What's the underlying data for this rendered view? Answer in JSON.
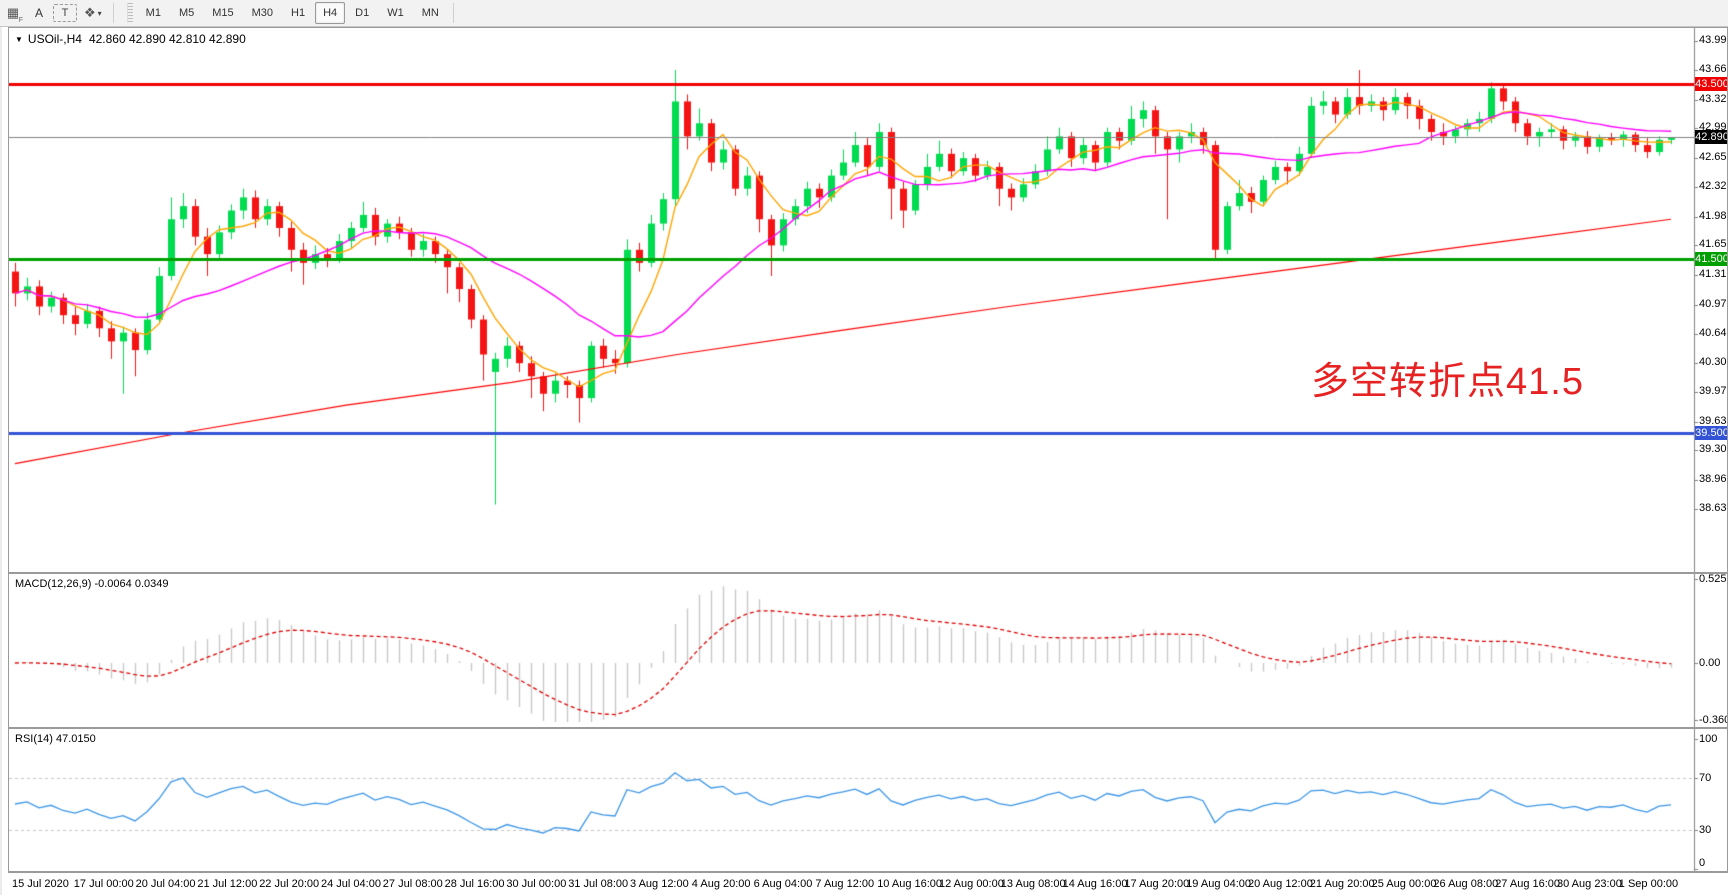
{
  "toolbar": {
    "icons": [
      {
        "name": "grid-icon",
        "glyph": "▦",
        "sub": "F"
      },
      {
        "name": "text-label-icon",
        "glyph": "A"
      },
      {
        "name": "text-tool-icon",
        "glyph": "T"
      },
      {
        "name": "arrow-tools-icon",
        "glyph": "❖"
      },
      {
        "name": "dropdown-caret-icon",
        "glyph": "▾"
      }
    ],
    "timeframes": [
      "M1",
      "M5",
      "M15",
      "M30",
      "H1",
      "H4",
      "D1",
      "W1",
      "MN"
    ],
    "active_timeframe": "H4"
  },
  "main": {
    "collapse_caret": "▼",
    "symbol_label": "USOil-,H4",
    "quote_line": "42.860 42.890 42.810 42.890",
    "annotation": {
      "text": "多空转折点41.5",
      "color": "#e62222"
    },
    "axis_ticks": [
      "43.990",
      "43.660",
      "43.320",
      "42.990",
      "42.650",
      "42.320",
      "41.980",
      "41.650",
      "41.310",
      "40.970",
      "40.640",
      "40.300",
      "39.970",
      "39.630",
      "39.300",
      "38.960",
      "38.630"
    ]
  },
  "macd": {
    "header": "MACD(12,26,9) -0.0064 0.0349",
    "axis_ticks": [
      "0.5257",
      "0.00",
      "-0.3603"
    ],
    "bar_color": "#c9c9c9",
    "signal_color": "#e00000"
  },
  "rsi": {
    "header": "RSI(14) 47.0150",
    "axis_ticks": [
      "100",
      "70",
      "30",
      "0"
    ],
    "level_lines": [
      70,
      30
    ],
    "line_color": "#3c96e6"
  },
  "time_axis": {
    "labels": [
      "15 Jul 2020",
      "17 Jul 00:00",
      "20 Jul 04:00",
      "21 Jul 12:00",
      "22 Jul 20:00",
      "24 Jul 04:00",
      "27 Jul 08:00",
      "28 Jul 16:00",
      "30 Jul 00:00",
      "31 Jul 08:00",
      "3 Aug 12:00",
      "4 Aug 20:00",
      "6 Aug 04:00",
      "7 Aug 12:00",
      "10 Aug 16:00",
      "12 Aug 00:00",
      "13 Aug 08:00",
      "14 Aug 16:00",
      "17 Aug 20:00",
      "19 Aug 04:00",
      "20 Aug 12:00",
      "21 Aug 20:00",
      "25 Aug 00:00",
      "26 Aug 08:00",
      "27 Aug 16:00",
      "30 Aug 23:00",
      "1 Sep 00:00"
    ]
  },
  "chart_data": {
    "type": "candlestick",
    "symbol": "USOil",
    "timeframe": "H4",
    "title": "USOil-,H4 42.860 42.890 42.810 42.890",
    "x_range": [
      "15 Jul 2020",
      "1 Sep 2020 00:00"
    ],
    "y_range": [
      38.63,
      43.99
    ],
    "up_color": "#00dc50",
    "down_color": "#f41414",
    "levels": [
      {
        "price": 43.5,
        "label": "43.500",
        "color": "#f00000",
        "badge_bg": "#f00000",
        "badge_fg": "#ffffff",
        "width": 3
      },
      {
        "price": 42.89,
        "label": "42.890",
        "color": "#808080",
        "badge_bg": "#000000",
        "badge_fg": "#ffffff",
        "width": 1
      },
      {
        "price": 41.5,
        "label": "41.500",
        "color": "#00a000",
        "badge_bg": "#00a000",
        "badge_fg": "#ffffff",
        "width": 3
      },
      {
        "price": 39.5,
        "label": "39.500",
        "color": "#3353d6",
        "badge_bg": "#3353d6",
        "badge_fg": "#ffffff",
        "width": 3
      }
    ],
    "moving_averages": [
      {
        "name": "fast-ma",
        "color": "#ffa500",
        "period": 5
      },
      {
        "name": "mid-ma",
        "color": "#ff00ff",
        "period": 18
      }
    ],
    "slow_ma": {
      "name": "slow-ma",
      "color": "#ff0000",
      "anchors": [
        [
          0,
          39.15
        ],
        [
          0.1,
          39.5
        ],
        [
          0.2,
          39.82
        ],
        [
          0.3,
          40.08
        ],
        [
          0.4,
          40.4
        ],
        [
          0.5,
          40.68
        ],
        [
          0.6,
          40.95
        ],
        [
          0.7,
          41.2
        ],
        [
          0.8,
          41.45
        ],
        [
          0.9,
          41.7
        ],
        [
          1,
          41.95
        ]
      ]
    },
    "indicators": {
      "macd": {
        "fast": 12,
        "slow": 26,
        "signal": 9,
        "value": -0.0064,
        "signal_value": 0.0349,
        "axis_max": 0.5257,
        "axis_min": -0.3603
      },
      "rsi": {
        "period": 14,
        "value": 47.015,
        "axis": [
          0,
          100
        ],
        "levels": [
          30,
          70
        ]
      }
    },
    "candles_ohlc": [
      [
        41.35,
        41.45,
        40.95,
        41.1
      ],
      [
        41.1,
        41.28,
        41.02,
        41.18
      ],
      [
        41.18,
        41.25,
        40.85,
        40.95
      ],
      [
        40.95,
        41.12,
        40.88,
        41.05
      ],
      [
        41.05,
        41.1,
        40.75,
        40.85
      ],
      [
        40.85,
        40.95,
        40.62,
        40.75
      ],
      [
        40.75,
        40.98,
        40.7,
        40.9
      ],
      [
        40.9,
        40.95,
        40.6,
        40.7
      ],
      [
        40.7,
        40.78,
        40.35,
        40.55
      ],
      [
        40.55,
        40.72,
        39.95,
        40.65
      ],
      [
        40.65,
        40.7,
        40.15,
        40.45
      ],
      [
        40.45,
        40.88,
        40.4,
        40.8
      ],
      [
        40.8,
        41.4,
        40.75,
        41.3
      ],
      [
        41.3,
        42.2,
        41.25,
        41.95
      ],
      [
        41.95,
        42.25,
        41.85,
        42.1
      ],
      [
        42.1,
        42.18,
        41.65,
        41.75
      ],
      [
        41.75,
        41.85,
        41.3,
        41.55
      ],
      [
        41.55,
        41.88,
        41.48,
        41.8
      ],
      [
        41.8,
        42.12,
        41.72,
        42.05
      ],
      [
        42.05,
        42.3,
        41.95,
        42.2
      ],
      [
        42.2,
        42.28,
        41.85,
        41.95
      ],
      [
        41.95,
        42.18,
        41.88,
        42.1
      ],
      [
        42.1,
        42.15,
        41.75,
        41.85
      ],
      [
        41.85,
        41.92,
        41.35,
        41.6
      ],
      [
        41.6,
        41.68,
        41.2,
        41.45
      ],
      [
        41.45,
        41.65,
        41.38,
        41.55
      ],
      [
        41.55,
        41.62,
        41.4,
        41.5
      ],
      [
        41.5,
        41.78,
        41.45,
        41.7
      ],
      [
        41.7,
        41.92,
        41.62,
        41.85
      ],
      [
        41.85,
        42.15,
        41.8,
        42.0
      ],
      [
        42.0,
        42.08,
        41.65,
        41.75
      ],
      [
        41.75,
        41.95,
        41.68,
        41.9
      ],
      [
        41.9,
        41.98,
        41.72,
        41.8
      ],
      [
        41.8,
        41.85,
        41.52,
        41.6
      ],
      [
        41.6,
        41.78,
        41.52,
        41.7
      ],
      [
        41.7,
        41.75,
        41.45,
        41.55
      ],
      [
        41.55,
        41.6,
        41.1,
        41.4
      ],
      [
        41.4,
        41.45,
        41.0,
        41.15
      ],
      [
        41.15,
        41.2,
        40.7,
        40.8
      ],
      [
        40.8,
        40.85,
        40.1,
        40.4
      ],
      [
        40.2,
        40.42,
        38.68,
        40.35
      ],
      [
        40.35,
        40.6,
        40.25,
        40.5
      ],
      [
        40.5,
        40.55,
        40.2,
        40.3
      ],
      [
        40.3,
        40.38,
        39.9,
        40.15
      ],
      [
        40.15,
        40.2,
        39.75,
        39.95
      ],
      [
        39.95,
        40.18,
        39.85,
        40.1
      ],
      [
        40.1,
        40.15,
        39.9,
        40.05
      ],
      [
        40.05,
        40.1,
        39.62,
        39.9
      ],
      [
        39.9,
        40.55,
        39.85,
        40.5
      ],
      [
        40.5,
        40.58,
        40.25,
        40.35
      ],
      [
        40.35,
        40.45,
        40.18,
        40.3
      ],
      [
        40.3,
        41.72,
        40.25,
        41.6
      ],
      [
        41.6,
        41.68,
        41.35,
        41.45
      ],
      [
        41.45,
        42.0,
        41.4,
        41.9
      ],
      [
        41.9,
        42.25,
        41.82,
        42.18
      ],
      [
        42.18,
        43.66,
        42.1,
        43.3
      ],
      [
        43.3,
        43.38,
        42.75,
        42.9
      ],
      [
        42.9,
        43.22,
        42.85,
        43.05
      ],
      [
        43.05,
        43.1,
        42.5,
        42.6
      ],
      [
        42.6,
        42.85,
        42.52,
        42.75
      ],
      [
        42.75,
        42.8,
        42.22,
        42.3
      ],
      [
        42.3,
        42.55,
        42.22,
        42.45
      ],
      [
        42.45,
        42.5,
        41.8,
        41.95
      ],
      [
        41.95,
        42.0,
        41.3,
        41.65
      ],
      [
        41.65,
        42.02,
        41.58,
        41.95
      ],
      [
        41.95,
        42.18,
        41.88,
        42.1
      ],
      [
        42.1,
        42.38,
        42.02,
        42.3
      ],
      [
        42.3,
        42.36,
        42.08,
        42.2
      ],
      [
        42.2,
        42.52,
        42.15,
        42.45
      ],
      [
        42.45,
        42.75,
        42.4,
        42.6
      ],
      [
        42.6,
        42.95,
        42.55,
        42.8
      ],
      [
        42.8,
        42.88,
        42.45,
        42.55
      ],
      [
        42.55,
        43.05,
        42.5,
        42.95
      ],
      [
        42.95,
        43.0,
        41.95,
        42.3
      ],
      [
        42.3,
        42.38,
        41.85,
        42.05
      ],
      [
        42.05,
        42.4,
        42.0,
        42.35
      ],
      [
        42.35,
        42.7,
        42.28,
        42.55
      ],
      [
        42.55,
        42.85,
        42.5,
        42.7
      ],
      [
        42.7,
        42.76,
        42.42,
        42.5
      ],
      [
        42.5,
        42.72,
        42.45,
        42.65
      ],
      [
        42.65,
        42.7,
        42.38,
        42.45
      ],
      [
        42.45,
        42.62,
        42.4,
        42.55
      ],
      [
        42.55,
        42.6,
        42.1,
        42.3
      ],
      [
        42.3,
        42.36,
        42.05,
        42.2
      ],
      [
        42.2,
        42.42,
        42.15,
        42.35
      ],
      [
        42.35,
        42.58,
        42.3,
        42.5
      ],
      [
        42.5,
        42.9,
        42.45,
        42.75
      ],
      [
        42.75,
        43.0,
        42.7,
        42.9
      ],
      [
        42.9,
        42.95,
        42.55,
        42.65
      ],
      [
        42.65,
        42.88,
        42.58,
        42.8
      ],
      [
        42.8,
        42.85,
        42.5,
        42.6
      ],
      [
        42.6,
        43.0,
        42.55,
        42.95
      ],
      [
        42.95,
        43.0,
        42.75,
        42.85
      ],
      [
        42.85,
        43.25,
        42.8,
        43.1
      ],
      [
        43.1,
        43.3,
        43.0,
        43.2
      ],
      [
        43.2,
        43.25,
        42.7,
        42.9
      ],
      [
        42.9,
        42.95,
        41.95,
        42.75
      ],
      [
        42.75,
        42.95,
        42.6,
        42.9
      ],
      [
        42.9,
        43.05,
        42.82,
        42.95
      ],
      [
        42.95,
        43.0,
        42.7,
        42.8
      ],
      [
        42.8,
        42.85,
        41.48,
        41.6
      ],
      [
        41.6,
        42.15,
        41.55,
        42.1
      ],
      [
        42.1,
        42.4,
        42.05,
        42.25
      ],
      [
        42.25,
        42.32,
        42.02,
        42.15
      ],
      [
        42.15,
        42.45,
        42.1,
        42.4
      ],
      [
        42.4,
        42.62,
        42.35,
        42.55
      ],
      [
        42.55,
        42.6,
        42.35,
        42.5
      ],
      [
        42.5,
        42.78,
        42.45,
        42.7
      ],
      [
        42.7,
        43.35,
        42.65,
        43.25
      ],
      [
        43.25,
        43.42,
        43.15,
        43.3
      ],
      [
        43.3,
        43.35,
        43.05,
        43.15
      ],
      [
        43.15,
        43.45,
        43.1,
        43.35
      ],
      [
        43.35,
        43.66,
        43.15,
        43.25
      ],
      [
        43.25,
        43.38,
        43.18,
        43.3
      ],
      [
        43.3,
        43.35,
        43.08,
        43.2
      ],
      [
        43.2,
        43.45,
        43.15,
        43.35
      ],
      [
        43.35,
        43.4,
        43.1,
        43.25
      ],
      [
        43.25,
        43.32,
        42.98,
        43.1
      ],
      [
        43.1,
        43.15,
        42.85,
        42.95
      ],
      [
        42.95,
        43.05,
        42.8,
        42.9
      ],
      [
        42.9,
        43.02,
        42.82,
        42.98
      ],
      [
        42.98,
        43.1,
        42.9,
        43.05
      ],
      [
        43.05,
        43.18,
        42.95,
        43.1
      ],
      [
        43.1,
        43.52,
        43.05,
        43.45
      ],
      [
        43.45,
        43.5,
        43.2,
        43.3
      ],
      [
        43.3,
        43.35,
        42.95,
        43.05
      ],
      [
        43.05,
        43.1,
        42.8,
        42.9
      ],
      [
        42.9,
        43.0,
        42.78,
        42.95
      ],
      [
        42.95,
        43.05,
        42.88,
        42.98
      ],
      [
        42.98,
        43.02,
        42.75,
        42.85
      ],
      [
        42.85,
        42.95,
        42.78,
        42.9
      ],
      [
        42.9,
        42.96,
        42.7,
        42.78
      ],
      [
        42.78,
        42.92,
        42.72,
        42.88
      ],
      [
        42.88,
        42.94,
        42.8,
        42.86
      ],
      [
        42.86,
        42.96,
        42.78,
        42.92
      ],
      [
        42.92,
        42.95,
        42.72,
        42.8
      ],
      [
        42.8,
        42.88,
        42.65,
        42.72
      ],
      [
        42.72,
        42.9,
        42.68,
        42.86
      ],
      [
        42.86,
        42.89,
        42.81,
        42.89
      ]
    ]
  }
}
